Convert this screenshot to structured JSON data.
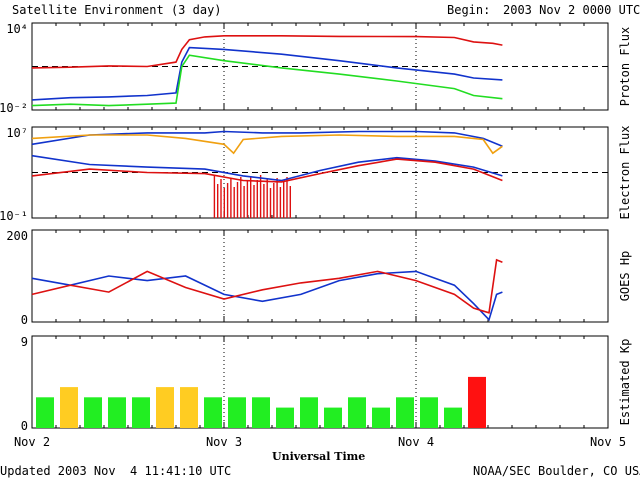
{
  "header": {
    "title": "Satellite Environment (3 day)",
    "begin_label": "Begin:",
    "begin_value": "2003 Nov 2 0000 UTC"
  },
  "footer": {
    "updated": "Updated 2003 Nov  4 11:41:10 UTC",
    "source": "NOAA/SEC Boulder, CO USA"
  },
  "x_axis": {
    "title": "Universal Time",
    "ticks": [
      "Nov 2",
      "Nov 3",
      "Nov 4",
      "Nov 5"
    ]
  },
  "colors": {
    "red": "#dd1111",
    "blue": "#1133cc",
    "green": "#22dd22",
    "orange": "#f0a010",
    "kp_green": "#22ee22",
    "kp_yellow": "#ffcc22",
    "kp_red": "#ff1111"
  },
  "chart_data": [
    {
      "type": "line",
      "ylabel": "Proton Flux",
      "yscale": "log",
      "ylim": [
        0.01,
        10000
      ],
      "y_tick_labels": [
        "10⁴",
        "10⁻²"
      ],
      "threshold": 10,
      "x_unit": "days since Nov 2",
      "xlim": [
        0,
        3
      ],
      "series": [
        {
          "color": "red",
          "x": [
            0,
            0.2,
            0.4,
            0.6,
            0.75,
            0.78,
            0.82,
            0.9,
            1.0,
            1.3,
            1.6,
            2.0,
            2.2,
            2.3,
            2.4,
            2.45
          ],
          "y": [
            8,
            9,
            11,
            10,
            20,
            150,
            700,
            1100,
            1300,
            1300,
            1200,
            1150,
            1000,
            500,
            400,
            300
          ]
        },
        {
          "color": "blue",
          "x": [
            0,
            0.2,
            0.4,
            0.6,
            0.75,
            0.78,
            0.82,
            1.0,
            1.3,
            1.6,
            1.9,
            2.2,
            2.3,
            2.45
          ],
          "y": [
            0.05,
            0.07,
            0.08,
            0.1,
            0.15,
            20,
            200,
            150,
            70,
            25,
            8,
            3,
            1.6,
            1.2
          ]
        },
        {
          "color": "green",
          "x": [
            0,
            0.2,
            0.4,
            0.6,
            0.75,
            0.78,
            0.82,
            1.0,
            1.3,
            1.6,
            1.9,
            2.2,
            2.3,
            2.45
          ],
          "y": [
            0.02,
            0.025,
            0.02,
            0.025,
            0.03,
            10,
            60,
            25,
            8,
            3,
            1,
            0.3,
            0.1,
            0.06
          ]
        }
      ]
    },
    {
      "type": "line",
      "ylabel": "Electron Flux",
      "yscale": "log",
      "ylim": [
        0.1,
        10000000
      ],
      "y_tick_labels": [
        "10⁷",
        "10⁻¹"
      ],
      "threshold": 1000,
      "x_unit": "days since Nov 2",
      "xlim": [
        0,
        3
      ],
      "series": [
        {
          "color": "blue",
          "x": [
            0,
            0.3,
            0.6,
            0.9,
            1.0,
            1.2,
            1.4,
            1.7,
            2.0,
            2.2,
            2.35,
            2.45
          ],
          "y": [
            300000,
            2000000,
            3000000,
            3000000,
            4000000,
            3000000,
            3000000,
            4000000,
            4000000,
            3000000,
            1000000,
            200000
          ]
        },
        {
          "color": "orange",
          "x": [
            0,
            0.3,
            0.6,
            0.8,
            1.0,
            1.05,
            1.1,
            1.3,
            1.6,
            1.9,
            2.2,
            2.35,
            2.4,
            2.45
          ],
          "y": [
            1000000,
            2000000,
            2000000,
            1000000,
            300000,
            50000,
            800000,
            1500000,
            2000000,
            1500000,
            1500000,
            800000,
            50000,
            200000
          ]
        },
        {
          "color": "blue",
          "x": [
            0,
            0.3,
            0.6,
            0.9,
            1.1,
            1.3,
            1.5,
            1.7,
            1.9,
            2.1,
            2.3,
            2.45
          ],
          "y": [
            30000,
            5000,
            3000,
            2000,
            500,
            200,
            1500,
            8000,
            20000,
            10000,
            3000,
            500
          ]
        },
        {
          "color": "red",
          "x": [
            0,
            0.3,
            0.6,
            0.9,
            1.1,
            1.3,
            1.5,
            1.7,
            1.9,
            2.1,
            2.3,
            2.45
          ],
          "y": [
            500,
            2000,
            1000,
            800,
            200,
            150,
            800,
            4000,
            15000,
            8000,
            2000,
            200
          ]
        }
      ],
      "dropouts": {
        "color": "red",
        "x_range": [
          0.95,
          1.35
        ]
      }
    },
    {
      "type": "line",
      "ylabel": "GOES Hp",
      "ylim": [
        0,
        200
      ],
      "y_tick_labels": [
        "200",
        "0"
      ],
      "x_unit": "days since Nov 2",
      "xlim": [
        0,
        3
      ],
      "series": [
        {
          "color": "blue",
          "x": [
            0,
            0.2,
            0.4,
            0.6,
            0.8,
            1.0,
            1.2,
            1.4,
            1.6,
            1.8,
            2.0,
            2.2,
            2.3,
            2.38,
            2.42,
            2.45
          ],
          "y": [
            95,
            80,
            100,
            90,
            100,
            60,
            45,
            60,
            90,
            105,
            110,
            80,
            40,
            5,
            60,
            65
          ]
        },
        {
          "color": "red",
          "x": [
            0,
            0.2,
            0.4,
            0.6,
            0.8,
            1.0,
            1.2,
            1.4,
            1.6,
            1.8,
            2.0,
            2.2,
            2.3,
            2.38,
            2.42,
            2.45
          ],
          "y": [
            60,
            80,
            65,
            110,
            75,
            50,
            70,
            85,
            95,
            110,
            90,
            60,
            30,
            20,
            135,
            130
          ]
        }
      ]
    },
    {
      "type": "bar",
      "ylabel": "Estimated Kp",
      "ylim": [
        0,
        9
      ],
      "y_tick_labels": [
        "9",
        "0"
      ],
      "x_unit": "days since Nov 2",
      "xlim": [
        0,
        3
      ],
      "bin_hours": 3,
      "values": [
        3,
        4,
        3,
        3,
        3,
        4,
        4,
        3,
        3,
        3,
        2,
        3,
        2,
        3,
        2,
        3,
        3,
        2,
        5
      ],
      "bar_colors": [
        "kp_green",
        "kp_yellow",
        "kp_green",
        "kp_green",
        "kp_green",
        "kp_yellow",
        "kp_yellow",
        "kp_green",
        "kp_green",
        "kp_green",
        "kp_green",
        "kp_green",
        "kp_green",
        "kp_green",
        "kp_green",
        "kp_green",
        "kp_green",
        "kp_green",
        "kp_red"
      ]
    }
  ]
}
